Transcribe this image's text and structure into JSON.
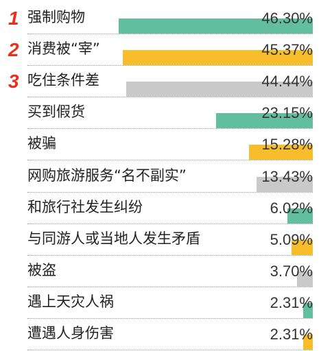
{
  "colors": {
    "teal": "#63bea0",
    "yellow": "#f7bd2a",
    "gray": "#c9c9c9",
    "rank": "#e8301d"
  },
  "chart_data": {
    "type": "bar",
    "orientation": "horizontal",
    "categories": [
      "强制购物",
      "消费被“宰”",
      "吃住条件差",
      "买到假货",
      "被骗",
      "网购旅游服务“名不副实”",
      "和旅行社发生纠纷",
      "与同游人或当地人发生矛盾",
      "被盗",
      "遇上天灾人祸",
      "遭遇人身伤害"
    ],
    "values": [
      46.3,
      45.37,
      44.44,
      23.15,
      15.28,
      13.43,
      6.02,
      5.09,
      3.7,
      2.31,
      2.31
    ],
    "value_labels": [
      "46.30%",
      "45.37%",
      "44.44%",
      "23.15%",
      "15.28%",
      "13.43%",
      "6.02%",
      "5.09%",
      "3.70%",
      "2.31%",
      "2.31%"
    ],
    "bar_colors": [
      "teal",
      "yellow",
      "gray",
      "teal",
      "yellow",
      "gray",
      "teal",
      "yellow",
      "gray",
      "teal",
      "yellow"
    ],
    "ranks": [
      "1",
      "2",
      "3"
    ],
    "unit": "%"
  }
}
